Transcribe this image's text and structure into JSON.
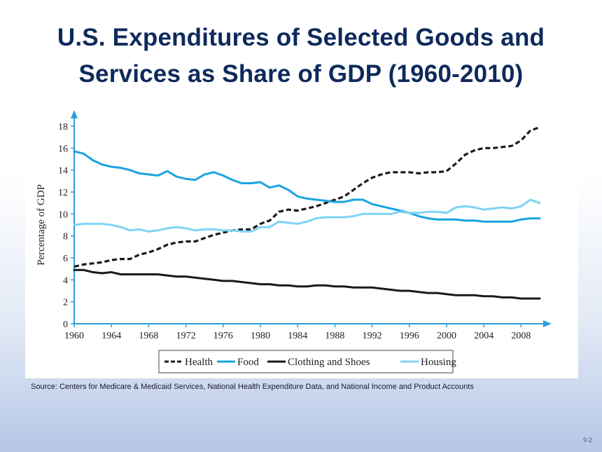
{
  "slide": {
    "title_line1": "U.S. Expenditures of Selected Goods and",
    "title_line2": "Services as Share of GDP (1960-2010)",
    "source": "Source:  Centers for Medicare & Medicaid Services, National Health Expenditure Data, and National Income and Product Accounts",
    "page_number": "9-2",
    "colors": {
      "title": "#0e2a5c",
      "axis": "#2a9fd8"
    }
  },
  "chart_data": {
    "type": "line",
    "ylabel": "Percentage of GDP",
    "xlabel": "",
    "xlim": [
      1960,
      2010
    ],
    "ylim": [
      0,
      18
    ],
    "x_ticks": [
      1960,
      1964,
      1968,
      1972,
      1976,
      1980,
      1984,
      1988,
      1992,
      1996,
      2000,
      2004,
      2008
    ],
    "y_ticks": [
      0,
      2,
      4,
      6,
      8,
      10,
      12,
      14,
      16,
      18
    ],
    "grid": false,
    "legend_position": "bottom",
    "x": [
      1960,
      1961,
      1962,
      1963,
      1964,
      1965,
      1966,
      1967,
      1968,
      1969,
      1970,
      1971,
      1972,
      1973,
      1974,
      1975,
      1976,
      1977,
      1978,
      1979,
      1980,
      1981,
      1982,
      1983,
      1984,
      1985,
      1986,
      1987,
      1988,
      1989,
      1990,
      1991,
      1992,
      1993,
      1994,
      1995,
      1996,
      1997,
      1998,
      1999,
      2000,
      2001,
      2002,
      2003,
      2004,
      2005,
      2006,
      2007,
      2008,
      2009,
      2010
    ],
    "series": [
      {
        "name": "Health",
        "color": "#1a1a1a",
        "style": "dashed",
        "values": [
          5.2,
          5.4,
          5.5,
          5.6,
          5.8,
          5.9,
          5.9,
          6.3,
          6.5,
          6.8,
          7.2,
          7.4,
          7.5,
          7.5,
          7.8,
          8.1,
          8.3,
          8.5,
          8.6,
          8.6,
          9.1,
          9.4,
          10.2,
          10.4,
          10.3,
          10.5,
          10.7,
          11.0,
          11.3,
          11.6,
          12.2,
          12.8,
          13.3,
          13.6,
          13.8,
          13.8,
          13.8,
          13.7,
          13.8,
          13.8,
          13.9,
          14.6,
          15.4,
          15.8,
          16.0,
          16.0,
          16.1,
          16.2,
          16.7,
          17.6,
          17.9
        ]
      },
      {
        "name": "Food",
        "color": "#1aa3e0",
        "style": "solid",
        "values": [
          15.7,
          15.5,
          14.9,
          14.5,
          14.3,
          14.2,
          14.0,
          13.7,
          13.6,
          13.5,
          13.9,
          13.4,
          13.2,
          13.1,
          13.6,
          13.8,
          13.5,
          13.1,
          12.8,
          12.8,
          12.9,
          12.4,
          12.6,
          12.2,
          11.6,
          11.4,
          11.3,
          11.2,
          11.1,
          11.1,
          11.3,
          11.3,
          10.9,
          10.7,
          10.5,
          10.3,
          10.1,
          9.8,
          9.6,
          9.5,
          9.5,
          9.5,
          9.4,
          9.4,
          9.3,
          9.3,
          9.3,
          9.3,
          9.5,
          9.6,
          9.6
        ]
      },
      {
        "name": "Clothing and Shoes",
        "color": "#1a1a1a",
        "style": "solid",
        "values": [
          4.9,
          4.9,
          4.7,
          4.6,
          4.7,
          4.5,
          4.5,
          4.5,
          4.5,
          4.5,
          4.4,
          4.3,
          4.3,
          4.2,
          4.1,
          4.0,
          3.9,
          3.9,
          3.8,
          3.7,
          3.6,
          3.6,
          3.5,
          3.5,
          3.4,
          3.4,
          3.5,
          3.5,
          3.4,
          3.4,
          3.3,
          3.3,
          3.3,
          3.2,
          3.1,
          3.0,
          3.0,
          2.9,
          2.8,
          2.8,
          2.7,
          2.6,
          2.6,
          2.6,
          2.5,
          2.5,
          2.4,
          2.4,
          2.3,
          2.3,
          2.3
        ]
      },
      {
        "name": "Housing",
        "color": "#7fd3f5",
        "style": "solid",
        "values": [
          9.0,
          9.1,
          9.1,
          9.1,
          9.0,
          8.8,
          8.5,
          8.6,
          8.4,
          8.5,
          8.7,
          8.8,
          8.7,
          8.5,
          8.6,
          8.6,
          8.5,
          8.5,
          8.4,
          8.4,
          8.8,
          8.8,
          9.3,
          9.2,
          9.1,
          9.3,
          9.6,
          9.7,
          9.7,
          9.7,
          9.8,
          10.0,
          10.0,
          10.0,
          10.0,
          10.2,
          10.1,
          10.1,
          10.2,
          10.2,
          10.1,
          10.6,
          10.7,
          10.6,
          10.4,
          10.5,
          10.6,
          10.5,
          10.7,
          11.3,
          11.0
        ]
      }
    ]
  }
}
